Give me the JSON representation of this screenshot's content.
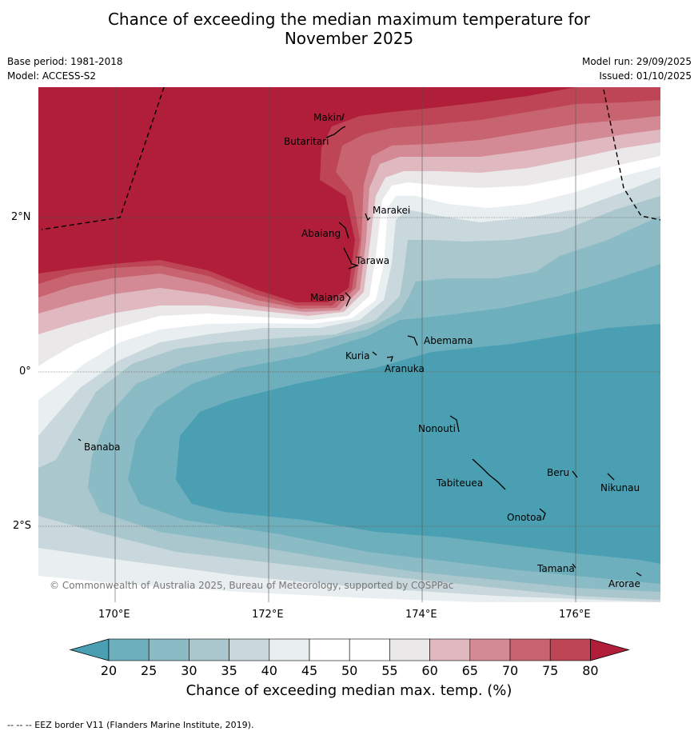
{
  "title": {
    "line1": "Chance of exceeding the median maximum temperature for",
    "line2": "November 2025"
  },
  "meta": {
    "base_period": "Base period: 1981-2018",
    "model": "Model: ACCESS-S2",
    "model_run": "Model run: 29/09/2025",
    "issued": "Issued: 01/10/2025"
  },
  "map": {
    "lat_labels": [
      "2°N",
      "0°",
      "2°S"
    ],
    "lon_labels": [
      "170°E",
      "172°E",
      "174°E",
      "176°E"
    ],
    "places": [
      {
        "name": "Makin"
      },
      {
        "name": "Butaritari"
      },
      {
        "name": "Marakei"
      },
      {
        "name": "Abaiang"
      },
      {
        "name": "Tarawa"
      },
      {
        "name": "Maiana"
      },
      {
        "name": "Abemama"
      },
      {
        "name": "Kuria"
      },
      {
        "name": "Aranuka"
      },
      {
        "name": "Banaba"
      },
      {
        "name": "Nonouti"
      },
      {
        "name": "Beru"
      },
      {
        "name": "Tabiteuea"
      },
      {
        "name": "Nikunau"
      },
      {
        "name": "Onotoa"
      },
      {
        "name": "Tamana"
      },
      {
        "name": "Arorae"
      }
    ],
    "copyright": "© Commonwealth of Australia 2025, Bureau of Meteorology, supported by COSPPac"
  },
  "colorbar": {
    "ticks": [
      "20",
      "25",
      "30",
      "35",
      "40",
      "45",
      "50",
      "55",
      "60",
      "65",
      "70",
      "75",
      "80"
    ],
    "label": "Chance of exceeding median max. temp. (%)",
    "colors": [
      "#4aa0b2",
      "#6dafbc",
      "#8bbbc5",
      "#a9c7cc",
      "#c9d8dc",
      "#e9eef0",
      "#ffffff",
      "#ffffff",
      "#ebe8ea",
      "#e0b8bf",
      "#d48a95",
      "#c7646f",
      "#bd4555",
      "#b01e39"
    ]
  },
  "footer": "--  --  -- EEZ border V11 (Flanders Marine Institute, 2019)."
}
